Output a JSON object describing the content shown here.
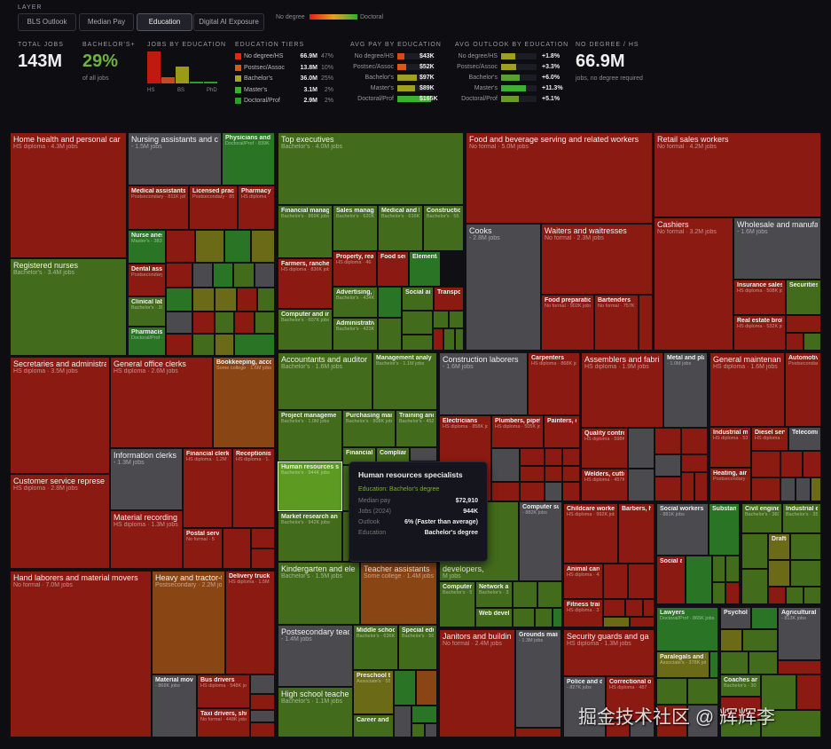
{
  "header": {
    "layer_label": "LAYER",
    "tabs": [
      {
        "label": "BLS Outlook"
      },
      {
        "label": "Median Pay"
      },
      {
        "label": "Education",
        "active": true
      },
      {
        "label": "Digital AI Exposure"
      }
    ],
    "legend": {
      "low": "No degree",
      "high": "Doctoral",
      "colors": [
        "#e02010",
        "#e8a020",
        "#30b030"
      ]
    }
  },
  "stats": {
    "total_jobs": {
      "label": "TOTAL JOBS",
      "value": "143M"
    },
    "bachelors": {
      "label": "BACHELOR'S+",
      "value": "29%",
      "sub": "of all jobs",
      "color": "#6db33f"
    },
    "jobs_by_education": {
      "label": "JOBS BY EDUCATION",
      "values": [
        66.9,
        13.8,
        36.0,
        3.1,
        2.9
      ],
      "colors": [
        "#c01a10",
        "#c84a18",
        "#9a9a18",
        "#2aa02a",
        "#2aa02a"
      ],
      "axis": [
        "HS",
        "BS",
        "PhD"
      ]
    },
    "tiers": {
      "label": "EDUCATION TIERS",
      "items": [
        {
          "name": "No degree/HS",
          "jobs": "66.9M",
          "pct": "47%",
          "color": "#e02a10"
        },
        {
          "name": "Postsec/Assoc",
          "jobs": "13.8M",
          "pct": "10%",
          "color": "#e0561a"
        },
        {
          "name": "Bachelor's",
          "jobs": "36.0M",
          "pct": "25%",
          "color": "#a8a820"
        },
        {
          "name": "Master's",
          "jobs": "3.1M",
          "pct": "2%",
          "color": "#3cb030"
        },
        {
          "name": "Doctoral/Prof",
          "jobs": "2.9M",
          "pct": "2%",
          "color": "#2aa02a"
        }
      ]
    },
    "pay": {
      "label": "AVG PAY BY EDUCATION",
      "items": [
        {
          "name": "No degree/HS",
          "value": "$43K",
          "fill": 0.2,
          "color": "#d84a18"
        },
        {
          "name": "Postsec/Assoc",
          "value": "$52K",
          "fill": 0.25,
          "color": "#d85a18"
        },
        {
          "name": "Bachelor's",
          "value": "$97K",
          "fill": 0.55,
          "color": "#a0a020"
        },
        {
          "name": "Master's",
          "value": "$89K",
          "fill": 0.5,
          "color": "#a0a020"
        },
        {
          "name": "Doctoral/Prof",
          "value": "$165K",
          "fill": 0.95,
          "color": "#3cb030"
        }
      ]
    },
    "outlook": {
      "label": "AVG OUTLOOK BY EDUCATION",
      "items": [
        {
          "name": "No degree/HS",
          "value": "+1.8%",
          "fill": 0.4,
          "color": "#a0a020"
        },
        {
          "name": "Postsec/Assoc",
          "value": "+3.3%",
          "fill": 0.43,
          "color": "#a0a020"
        },
        {
          "name": "Bachelor's",
          "value": "+6.0%",
          "fill": 0.53,
          "color": "#5aa030"
        },
        {
          "name": "Master's",
          "value": "+11.3%",
          "fill": 0.7,
          "color": "#3cb030"
        },
        {
          "name": "Doctoral/Prof",
          "value": "+5.1%",
          "fill": 0.5,
          "color": "#6a9a28"
        }
      ]
    },
    "nodegree": {
      "label": "NO DEGREE / HS",
      "value": "66.9M",
      "sub": "jobs, no degree required"
    }
  },
  "palette": {
    "r": "#8b1a12",
    "o": "#8a4515",
    "g": "#436b1c",
    "G": "#2a7525",
    "y": "#6b6a16",
    "k": "#4a4a4f",
    "h": "#5c9a22"
  },
  "cells": [
    {
      "n": "Home health and personal car",
      "s": "HS diploma · 4.3M jobs",
      "c": "r"
    },
    {
      "n": "Registered nurses",
      "s": "Bachelor's · 3.4M jobs",
      "c": "g"
    },
    {
      "n": "Nursing assistants and c",
      "s": " - 1.5M jobs",
      "c": "k"
    },
    {
      "n": "Physicians and sur",
      "s": "Doctoral/Prof · 839K",
      "c": "G"
    },
    {
      "n": "Medical assistants",
      "s": "Postsecondary · 811K jobs",
      "c": "r"
    },
    {
      "n": "Licensed practica",
      "s": "Postsecondary · 85",
      "c": "r"
    },
    {
      "n": "Pharmacy te",
      "s": "HS diploma · ",
      "c": "r"
    },
    {
      "n": "Nurse anesth",
      "s": "Master's · 383",
      "c": "G"
    },
    {
      "n": "Dental assist",
      "s": "Postsecondary",
      "c": "r"
    },
    {
      "n": "Clinical labor",
      "s": "Bachelor's · 35",
      "c": "g"
    },
    {
      "n": "Pharmacists",
      "s": "Doctoral/Prof ·",
      "c": "G"
    },
    {
      "n": "Secretaries and administra",
      "s": "HS diploma · 3.5M jobs",
      "c": "r"
    },
    {
      "n": "Customer service represe",
      "s": "HS diploma · 2.8M jobs",
      "c": "r"
    },
    {
      "n": "General office clerks",
      "s": "HS diploma · 2.6M jobs",
      "c": "r"
    },
    {
      "n": "Bookkeeping, acco",
      "s": "Some college · 1.6M jobs",
      "c": "o"
    },
    {
      "n": "Information clerks",
      "s": " - 1.3M jobs",
      "c": "k"
    },
    {
      "n": "Material recording",
      "s": "HS diploma · 1.3M jobs",
      "c": "r"
    },
    {
      "n": "Financial clerks",
      "s": "HS diploma · 1.2M",
      "c": "r"
    },
    {
      "n": "Receptionists",
      "s": "HS diploma · 1.",
      "c": "r"
    },
    {
      "n": "Postal service",
      "s": "No formal · 5",
      "c": "r"
    },
    {
      "n": "Hand laborers and material movers",
      "s": "No formal · 7.0M jobs",
      "c": "r"
    },
    {
      "n": "Heavy and tractor-t",
      "s": "Postsecondary · 2.2M jobs",
      "c": "o"
    },
    {
      "n": "Delivery truck dri",
      "s": "HS diploma · 1.5M",
      "c": "r"
    },
    {
      "n": "Material moving",
      "s": " - 868K jobs",
      "c": "k"
    },
    {
      "n": "Bus drivers",
      "s": "HS diploma · 548K jobs",
      "c": "r"
    },
    {
      "n": "Taxi drivers, shuttl",
      "s": "No formal · 448K jobs",
      "c": "r"
    },
    {
      "n": "Top executives",
      "s": "Bachelor's · 4.0M jobs",
      "c": "g"
    },
    {
      "n": "Financial managers",
      "s": "Bachelor's · 869K jobs",
      "c": "g"
    },
    {
      "n": "Sales managers",
      "s": "Bachelor's · 620K",
      "c": "g"
    },
    {
      "n": "Medical and he",
      "s": "Bachelor's · 616K",
      "c": "g"
    },
    {
      "n": "Construction",
      "s": "Bachelor's · 55",
      "c": "g"
    },
    {
      "n": "Farmers, ranchers,",
      "s": "HS diploma · 836K jobs",
      "c": "r"
    },
    {
      "n": "Computer and info",
      "s": "Bachelor's · 607K jobs",
      "c": "g"
    },
    {
      "n": "Property, real e",
      "s": "HS diploma · 46",
      "c": "r"
    },
    {
      "n": "Food servi",
      "s": "",
      "c": "r"
    },
    {
      "n": "Elementa",
      "s": "",
      "c": "G"
    },
    {
      "n": "Advertising, pr",
      "s": "Bachelor's · 434K",
      "c": "g"
    },
    {
      "n": "Administrative",
      "s": "Bachelor's · 423K",
      "c": "g"
    },
    {
      "n": "Social anc",
      "s": "",
      "c": "g"
    },
    {
      "n": "Transport",
      "s": "",
      "c": "r"
    },
    {
      "n": "Food and beverage serving and related workers",
      "s": "No formal · 5.0M jobs",
      "c": "r"
    },
    {
      "n": "Cooks",
      "s": " - 2.8M jobs",
      "c": "k"
    },
    {
      "n": "Waiters and waitresses",
      "s": "No formal · 2.3M jobs",
      "c": "r"
    },
    {
      "n": "Food preparation w",
      "s": "No formal · 902K jobs",
      "c": "r"
    },
    {
      "n": "Bartenders",
      "s": "No formal · 757K",
      "c": "r"
    },
    {
      "n": "Retail sales workers",
      "s": "No formal · 4.2M jobs",
      "c": "r"
    },
    {
      "n": "Cashiers",
      "s": "No formal · 3.2M jobs",
      "c": "r"
    },
    {
      "n": "Wholesale and manufa",
      "s": " - 1.6M jobs",
      "c": "k"
    },
    {
      "n": "Insurance sales ag",
      "s": "HS diploma · 508K jobs",
      "c": "r"
    },
    {
      "n": "Real estate broker",
      "s": "HS diploma · 532K jobs",
      "c": "r"
    },
    {
      "n": "Securities, c",
      "s": "",
      "c": "g"
    },
    {
      "n": "Accountants and auditor",
      "s": "Bachelor's · 1.6M jobs",
      "c": "g"
    },
    {
      "n": "Management analy",
      "s": "Bachelor's · 1.1M jobs",
      "c": "g"
    },
    {
      "n": "Project manageme",
      "s": "Bachelor's · 1.0M jobs",
      "c": "g"
    },
    {
      "n": "Purchasing manag",
      "s": "Bachelor's · 808K jobs",
      "c": "g"
    },
    {
      "n": "Training and",
      "s": "Bachelor's · 452",
      "c": "g"
    },
    {
      "n": "Financial a",
      "s": "",
      "c": "g"
    },
    {
      "n": "Complianc",
      "s": "",
      "c": "g"
    },
    {
      "n": "Human resources s",
      "s": "Bachelor's · 944K jobs",
      "c": "h",
      "selected": true
    },
    {
      "n": "Market research an",
      "s": "Bachelor's · 942K jobs",
      "c": "g"
    },
    {
      "n": "Kindergarten and ele",
      "s": "Bachelor's · 1.5M jobs",
      "c": "g"
    },
    {
      "n": "Teacher assistants",
      "s": "Some college · 1.4M jobs",
      "c": "o"
    },
    {
      "n": "Postsecondary teac",
      "s": " - 1.4M jobs",
      "c": "k"
    },
    {
      "n": "High school teache",
      "s": "Bachelor's · 1.1M jobs",
      "c": "g"
    },
    {
      "n": "Middle school",
      "s": "Bachelor's · 636K",
      "c": "g"
    },
    {
      "n": "Special educ",
      "s": "Bachelor's · 50",
      "c": "g"
    },
    {
      "n": "Preschool tea",
      "s": "Associate's · 55",
      "c": "y"
    },
    {
      "n": "Career and te",
      "s": "",
      "c": "g"
    },
    {
      "n": "Construction laborers",
      "s": " - 1.6M jobs",
      "c": "k"
    },
    {
      "n": "Carpenters",
      "s": "HS diploma · 868K jobs",
      "c": "r"
    },
    {
      "n": "Electricians",
      "s": "HS diploma · 858K jobs",
      "c": "r"
    },
    {
      "n": "Plumbers, pipefitt",
      "s": "HS diploma · 505K jobs",
      "c": "r"
    },
    {
      "n": "Painters, co",
      "s": "",
      "c": "r"
    },
    {
      "n": "developers,",
      "s": "M jobs",
      "c": "g"
    },
    {
      "n": "Computer su",
      "s": " - 882K jobs",
      "c": "k"
    },
    {
      "n": "Computer s",
      "s": "Bachelor's · 5",
      "c": "g"
    },
    {
      "n": "Network and",
      "s": "Bachelor's · 33",
      "c": "g"
    },
    {
      "n": "Web develop",
      "s": "",
      "c": "g"
    },
    {
      "n": "Janitors and buildin",
      "s": "No formal · 2.4M jobs",
      "c": "r"
    },
    {
      "n": "Grounds maint",
      "s": " - 1.3M jobs",
      "c": "k"
    },
    {
      "n": "Assemblers and fabri",
      "s": "HS diploma · 1.9M jobs",
      "c": "r"
    },
    {
      "n": "Metal and plas",
      "s": " - 1.0M jobs",
      "c": "k"
    },
    {
      "n": "Quality control i",
      "s": "HS diploma · 598K",
      "c": "r"
    },
    {
      "n": "Welders, cutters,",
      "s": "HS diploma · 457K",
      "c": "r"
    },
    {
      "n": "General maintenanc",
      "s": "HS diploma · 1.6M jobs",
      "c": "r"
    },
    {
      "n": "Automotive",
      "s": "Postsecondar",
      "c": "r"
    },
    {
      "n": "Industrial mac",
      "s": "HS diploma · 53",
      "c": "r"
    },
    {
      "n": "Diesel servic",
      "s": "HS diploma · 1",
      "c": "r"
    },
    {
      "n": "Telecomm",
      "s": "",
      "c": "k"
    },
    {
      "n": "Heating, air co",
      "s": "Postsecondary ·",
      "c": "r"
    },
    {
      "n": "Childcare workers",
      "s": "HS diploma · 992K jobs",
      "c": "r"
    },
    {
      "n": "Barbers, hai",
      "s": "",
      "c": "r"
    },
    {
      "n": "Animal care a",
      "s": "HS diploma · 43",
      "c": "r"
    },
    {
      "n": "Fitness trainer",
      "s": "HS diploma · 37",
      "c": "r"
    },
    {
      "n": "Security guards and ga",
      "s": "HS diploma · 1.3M jobs",
      "c": "r"
    },
    {
      "n": "Police and dete",
      "s": " - 827K jobs",
      "c": "k"
    },
    {
      "n": "Correctional of",
      "s": "HS diploma · 487",
      "c": "r"
    },
    {
      "n": "Social workers",
      "s": " - 881K jobs",
      "c": "k"
    },
    {
      "n": "Substance",
      "s": "",
      "c": "G"
    },
    {
      "n": "Social anc",
      "s": "",
      "c": "r"
    },
    {
      "n": "Civil engineer",
      "s": "Bachelor's · 369",
      "c": "g"
    },
    {
      "n": "Industrial eng",
      "s": "Bachelor's · 35",
      "c": "g"
    },
    {
      "n": "Drafters",
      "s": "",
      "c": "y"
    },
    {
      "n": "Lawyers",
      "s": "Doctoral/Prof · 865K jobs",
      "c": "G"
    },
    {
      "n": "Paralegals and leg",
      "s": "Associate's · 378K jobs",
      "c": "y"
    },
    {
      "n": "Psycholog",
      "s": "",
      "c": "k"
    },
    {
      "n": "Agricultural w",
      "s": " - 813K jobs",
      "c": "k"
    },
    {
      "n": "Coaches and",
      "s": "Bachelor's · 30",
      "c": "g"
    }
  ],
  "tooltip": {
    "title": "Human resources specialists",
    "education_line": "Education: Bachelor's degree",
    "rows": [
      {
        "k": "Median pay",
        "v": "$72,910"
      },
      {
        "k": "Jobs (2024)",
        "v": "944K"
      },
      {
        "k": "Outlook",
        "v": "6% (Faster than average)"
      },
      {
        "k": "Education",
        "v": "Bachelor's degree"
      }
    ]
  },
  "watermark": "掘金技术社区 @ 辉辉李"
}
